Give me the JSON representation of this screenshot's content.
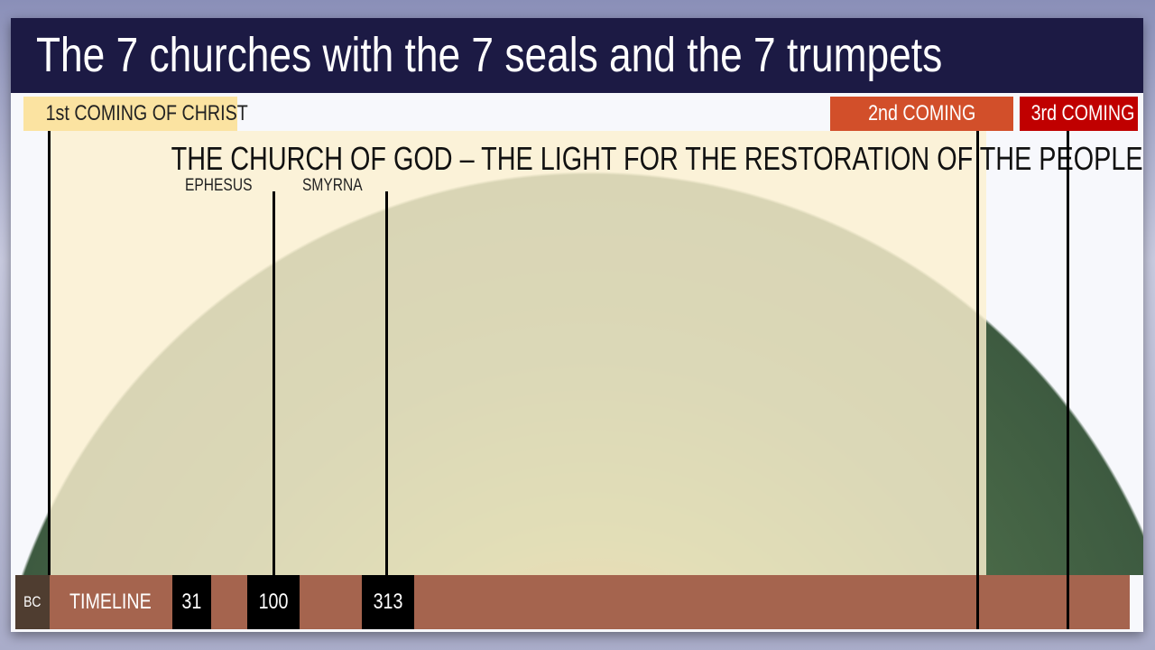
{
  "title": "The 7 churches with the 7 seals and the 7 trumpets",
  "headers": {
    "first": "1st COMING OF CHRIST",
    "second": "2nd COMING",
    "third": "3rd COMING"
  },
  "heading": "THE CHURCH OF GOD – THE LIGHT FOR THE RESTORATION OF THE PEOPLE",
  "churches": [
    "EPHESUS",
    "SMYRNA"
  ],
  "timeline": {
    "era": "BC",
    "label": "TIMELINE",
    "years": [
      "31",
      "100",
      "313"
    ]
  },
  "colors": {
    "title_bar": "#1c1a44",
    "first_coming": "#fbe3a1",
    "second_coming": "#d24f2a",
    "third_coming": "#c00000",
    "timeline": "#a5644e",
    "era": "#4f3d30"
  }
}
